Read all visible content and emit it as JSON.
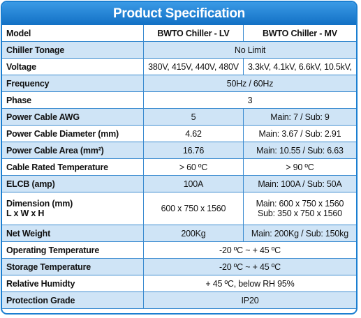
{
  "header": {
    "title": "Product Specification"
  },
  "table": {
    "columns": [
      "Model",
      "BWTO Chiller - LV",
      "BWTO Chiller - MV"
    ],
    "rows": [
      [
        "Chiller Tonage",
        "No Limit"
      ],
      [
        "Voltage",
        "380V, 415V, 440V, 480V",
        "3.3kV, 4.1kV, 6.6kV, 10.5kV,"
      ],
      [
        "Frequency",
        "50Hz  / 60Hz"
      ],
      [
        "Phase",
        "3"
      ],
      [
        "Power Cable AWG",
        "5",
        "Main: 7 / Sub: 9"
      ],
      [
        "Power Cable Diameter (mm)",
        "4.62",
        "Main: 3.67 / Sub: 2.91"
      ],
      [
        "Power Cable Area (mm²)",
        "16.76",
        "Main: 10.55 / Sub: 6.63"
      ],
      [
        "Cable Rated Temperature",
        "> 60 ºC",
        "> 90 ºC"
      ],
      [
        "ELCB (amp)",
        "100A",
        "Main: 100A / Sub: 50A"
      ],
      [
        [
          "Dimension (mm)",
          "L x W x H"
        ],
        "600 x 750 x 1560",
        [
          "Main: 600 x 750 x 1560",
          "Sub: 350 x 750 x 1560"
        ]
      ],
      [
        "Net Weight",
        "200Kg",
        "Main: 200Kg / Sub: 150kg"
      ],
      [
        "Operating Temperature",
        "-20 ºC ~ + 45 ºC"
      ],
      [
        "Storage Temperature",
        "-20 ºC ~ + 45 ºC"
      ],
      [
        "Relative Humidty",
        "+ 45 ºC, below RH 95%"
      ],
      [
        "Protection Grade",
        "IP20"
      ]
    ]
  }
}
